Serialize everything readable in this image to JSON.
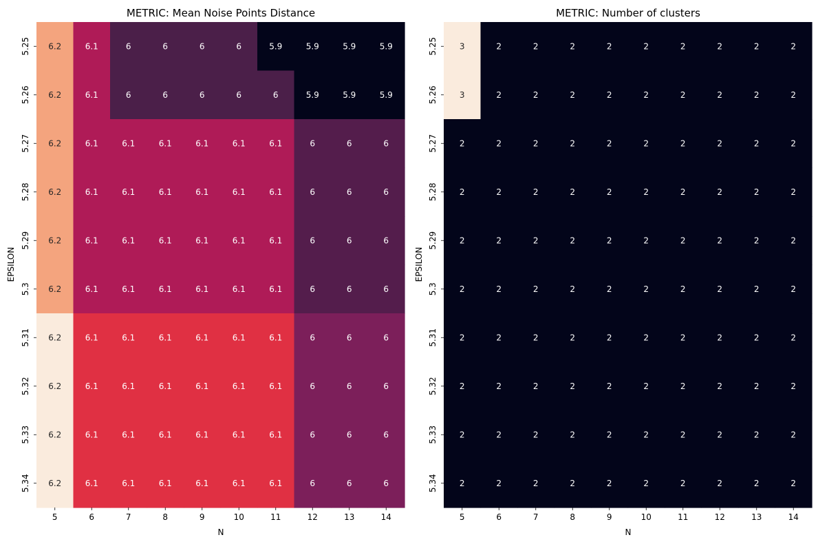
{
  "chart_data": [
    {
      "type": "heatmap",
      "title": "METRIC: Mean Noise Points Distance",
      "xlabel": "N",
      "ylabel": "EPSILON",
      "x": [
        "5",
        "6",
        "7",
        "8",
        "9",
        "10",
        "11",
        "12",
        "13",
        "14"
      ],
      "y": [
        "5.25",
        "5.26",
        "5.27",
        "5.28",
        "5.29",
        "5.3",
        "5.31",
        "5.32",
        "5.33",
        "5.34"
      ],
      "values": [
        [
          6.2,
          6.1,
          6,
          6,
          6,
          6,
          5.9,
          5.9,
          5.9,
          5.9
        ],
        [
          6.2,
          6.1,
          6,
          6,
          6,
          6,
          6,
          5.9,
          5.9,
          5.9
        ],
        [
          6.2,
          6.1,
          6.1,
          6.1,
          6.1,
          6.1,
          6.1,
          6,
          6,
          6
        ],
        [
          6.2,
          6.1,
          6.1,
          6.1,
          6.1,
          6.1,
          6.1,
          6,
          6,
          6
        ],
        [
          6.2,
          6.1,
          6.1,
          6.1,
          6.1,
          6.1,
          6.1,
          6,
          6,
          6
        ],
        [
          6.2,
          6.1,
          6.1,
          6.1,
          6.1,
          6.1,
          6.1,
          6,
          6,
          6
        ],
        [
          6.2,
          6.1,
          6.1,
          6.1,
          6.1,
          6.1,
          6.1,
          6,
          6,
          6
        ],
        [
          6.2,
          6.1,
          6.1,
          6.1,
          6.1,
          6.1,
          6.1,
          6,
          6,
          6
        ],
        [
          6.2,
          6.1,
          6.1,
          6.1,
          6.1,
          6.1,
          6.1,
          6,
          6,
          6
        ],
        [
          6.2,
          6.1,
          6.1,
          6.1,
          6.1,
          6.1,
          6.1,
          6,
          6,
          6
        ]
      ],
      "cell_colors": [
        [
          "#f4a47e",
          "#af1b57",
          "#4b1f49",
          "#4b1f49",
          "#4b1f49",
          "#4b1f49",
          "#03051a",
          "#03051a",
          "#03051a",
          "#03051a"
        ],
        [
          "#f4a47e",
          "#af1b57",
          "#4b1f49",
          "#4b1f49",
          "#4b1f49",
          "#4b1f49",
          "#4b1f49",
          "#03051a",
          "#03051a",
          "#03051a"
        ],
        [
          "#f4a47e",
          "#af1b57",
          "#af1b57",
          "#af1b57",
          "#af1b57",
          "#af1b57",
          "#af1b57",
          "#541d4c",
          "#541d4c",
          "#541d4c"
        ],
        [
          "#f4a47e",
          "#af1b57",
          "#af1b57",
          "#af1b57",
          "#af1b57",
          "#af1b57",
          "#af1b57",
          "#541d4c",
          "#541d4c",
          "#541d4c"
        ],
        [
          "#f4a47e",
          "#af1b57",
          "#af1b57",
          "#af1b57",
          "#af1b57",
          "#af1b57",
          "#af1b57",
          "#541d4c",
          "#541d4c",
          "#541d4c"
        ],
        [
          "#f4a47e",
          "#af1b57",
          "#af1b57",
          "#af1b57",
          "#af1b57",
          "#af1b57",
          "#af1b57",
          "#541d4c",
          "#541d4c",
          "#541d4c"
        ],
        [
          "#faebdd",
          "#e03043",
          "#e03043",
          "#e03043",
          "#e03043",
          "#e03043",
          "#e03043",
          "#7c1f5a",
          "#7c1f5a",
          "#7c1f5a"
        ],
        [
          "#faebdd",
          "#e03043",
          "#e03043",
          "#e03043",
          "#e03043",
          "#e03043",
          "#e03043",
          "#7c1f5a",
          "#7c1f5a",
          "#7c1f5a"
        ],
        [
          "#faebdd",
          "#e03043",
          "#e03043",
          "#e03043",
          "#e03043",
          "#e03043",
          "#e03043",
          "#7c1f5a",
          "#7c1f5a",
          "#7c1f5a"
        ],
        [
          "#faebdd",
          "#e03043",
          "#e03043",
          "#e03043",
          "#e03043",
          "#e03043",
          "#e03043",
          "#7c1f5a",
          "#7c1f5a",
          "#7c1f5a"
        ]
      ],
      "colorbar": false,
      "grid": false
    },
    {
      "type": "heatmap",
      "title": "METRIC: Number of clusters",
      "xlabel": "N",
      "ylabel": "EPSILON",
      "x": [
        "5",
        "6",
        "7",
        "8",
        "9",
        "10",
        "11",
        "12",
        "13",
        "14"
      ],
      "y": [
        "5.25",
        "5.26",
        "5.27",
        "5.28",
        "5.29",
        "5.3",
        "5.31",
        "5.32",
        "5.33",
        "5.34"
      ],
      "values": [
        [
          3,
          2,
          2,
          2,
          2,
          2,
          2,
          2,
          2,
          2
        ],
        [
          3,
          2,
          2,
          2,
          2,
          2,
          2,
          2,
          2,
          2
        ],
        [
          2,
          2,
          2,
          2,
          2,
          2,
          2,
          2,
          2,
          2
        ],
        [
          2,
          2,
          2,
          2,
          2,
          2,
          2,
          2,
          2,
          2
        ],
        [
          2,
          2,
          2,
          2,
          2,
          2,
          2,
          2,
          2,
          2
        ],
        [
          2,
          2,
          2,
          2,
          2,
          2,
          2,
          2,
          2,
          2
        ],
        [
          2,
          2,
          2,
          2,
          2,
          2,
          2,
          2,
          2,
          2
        ],
        [
          2,
          2,
          2,
          2,
          2,
          2,
          2,
          2,
          2,
          2
        ],
        [
          2,
          2,
          2,
          2,
          2,
          2,
          2,
          2,
          2,
          2
        ],
        [
          2,
          2,
          2,
          2,
          2,
          2,
          2,
          2,
          2,
          2
        ]
      ],
      "cell_colors": [
        [
          "#faebdd",
          "#03051a",
          "#03051a",
          "#03051a",
          "#03051a",
          "#03051a",
          "#03051a",
          "#03051a",
          "#03051a",
          "#03051a"
        ],
        [
          "#faebdd",
          "#03051a",
          "#03051a",
          "#03051a",
          "#03051a",
          "#03051a",
          "#03051a",
          "#03051a",
          "#03051a",
          "#03051a"
        ],
        [
          "#03051a",
          "#03051a",
          "#03051a",
          "#03051a",
          "#03051a",
          "#03051a",
          "#03051a",
          "#03051a",
          "#03051a",
          "#03051a"
        ],
        [
          "#03051a",
          "#03051a",
          "#03051a",
          "#03051a",
          "#03051a",
          "#03051a",
          "#03051a",
          "#03051a",
          "#03051a",
          "#03051a"
        ],
        [
          "#03051a",
          "#03051a",
          "#03051a",
          "#03051a",
          "#03051a",
          "#03051a",
          "#03051a",
          "#03051a",
          "#03051a",
          "#03051a"
        ],
        [
          "#03051a",
          "#03051a",
          "#03051a",
          "#03051a",
          "#03051a",
          "#03051a",
          "#03051a",
          "#03051a",
          "#03051a",
          "#03051a"
        ],
        [
          "#03051a",
          "#03051a",
          "#03051a",
          "#03051a",
          "#03051a",
          "#03051a",
          "#03051a",
          "#03051a",
          "#03051a",
          "#03051a"
        ],
        [
          "#03051a",
          "#03051a",
          "#03051a",
          "#03051a",
          "#03051a",
          "#03051a",
          "#03051a",
          "#03051a",
          "#03051a",
          "#03051a"
        ],
        [
          "#03051a",
          "#03051a",
          "#03051a",
          "#03051a",
          "#03051a",
          "#03051a",
          "#03051a",
          "#03051a",
          "#03051a",
          "#03051a"
        ],
        [
          "#03051a",
          "#03051a",
          "#03051a",
          "#03051a",
          "#03051a",
          "#03051a",
          "#03051a",
          "#03051a",
          "#03051a",
          "#03051a"
        ]
      ],
      "colorbar": false,
      "grid": false
    }
  ]
}
